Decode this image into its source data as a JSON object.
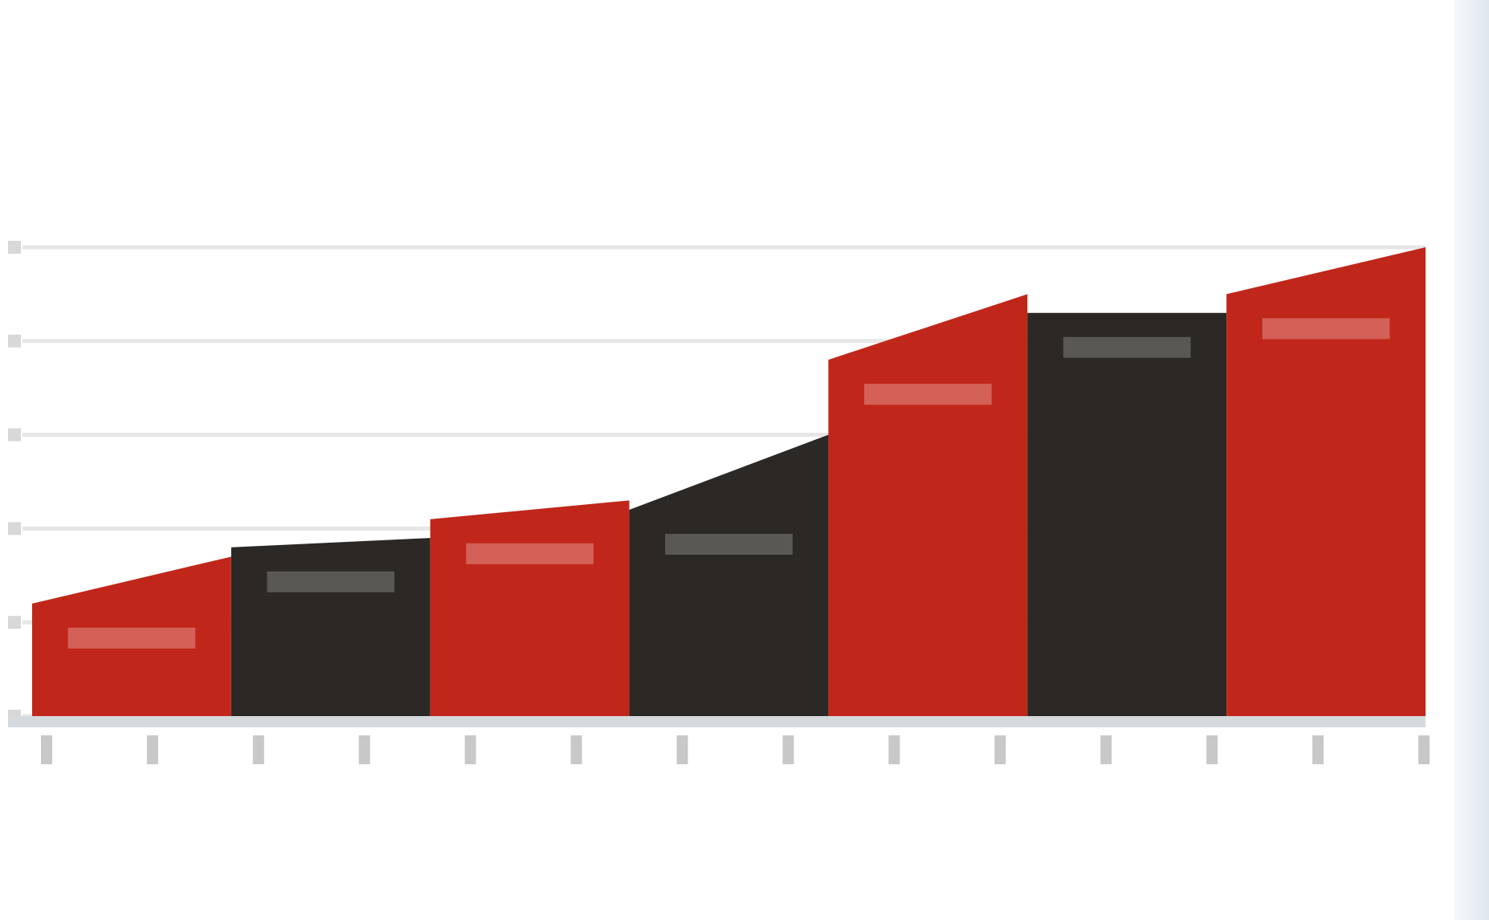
{
  "header": {
    "source": "",
    "kicker": "",
    "headline": ""
  },
  "footnote": "",
  "colors": {
    "accent": "#c0271a",
    "dark": "#2b2825",
    "grid": "#e6e6e6",
    "axis": "#d6dadd"
  },
  "chart_data": {
    "type": "area",
    "title": "",
    "xlabel": "",
    "ylabel": "",
    "ylim": [
      0,
      5
    ],
    "grid": true,
    "shape": "stepped bands, alternating red and dark",
    "bands": [
      {
        "color": "red",
        "start": 1.2,
        "end": 1.7
      },
      {
        "color": "dark",
        "start": 1.8,
        "end": 1.9
      },
      {
        "color": "red",
        "start": 2.1,
        "end": 2.3
      },
      {
        "color": "dark",
        "start": 2.2,
        "end": 3.0
      },
      {
        "color": "red",
        "start": 3.8,
        "end": 4.5
      },
      {
        "color": "dark",
        "start": 4.3,
        "end": 4.3
      },
      {
        "color": "red",
        "start": 4.5,
        "end": 5.0
      }
    ]
  }
}
